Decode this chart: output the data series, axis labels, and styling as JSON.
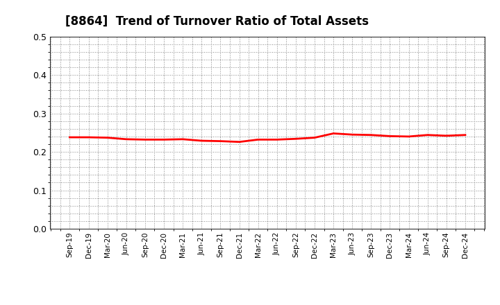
{
  "title": "[8864]  Trend of Turnover Ratio of Total Assets",
  "title_fontsize": 12,
  "line_color": "#FF0000",
  "line_width": 2.0,
  "background_color": "#FFFFFF",
  "ylim": [
    0.0,
    0.5
  ],
  "yticks": [
    0.0,
    0.1,
    0.2,
    0.3,
    0.4,
    0.5
  ],
  "x_labels": [
    "Sep-19",
    "Dec-19",
    "Mar-20",
    "Jun-20",
    "Sep-20",
    "Dec-20",
    "Mar-21",
    "Jun-21",
    "Sep-21",
    "Dec-21",
    "Mar-22",
    "Jun-22",
    "Sep-22",
    "Dec-22",
    "Mar-23",
    "Jun-23",
    "Sep-23",
    "Dec-23",
    "Mar-24",
    "Jun-24",
    "Sep-24",
    "Dec-24"
  ],
  "values": [
    0.238,
    0.238,
    0.237,
    0.233,
    0.232,
    0.232,
    0.233,
    0.229,
    0.228,
    0.226,
    0.232,
    0.232,
    0.234,
    0.237,
    0.248,
    0.245,
    0.244,
    0.241,
    0.24,
    0.244,
    0.242,
    0.244
  ],
  "grid_color": "#888888",
  "grid_linestyle": ":",
  "grid_linewidth": 0.7
}
